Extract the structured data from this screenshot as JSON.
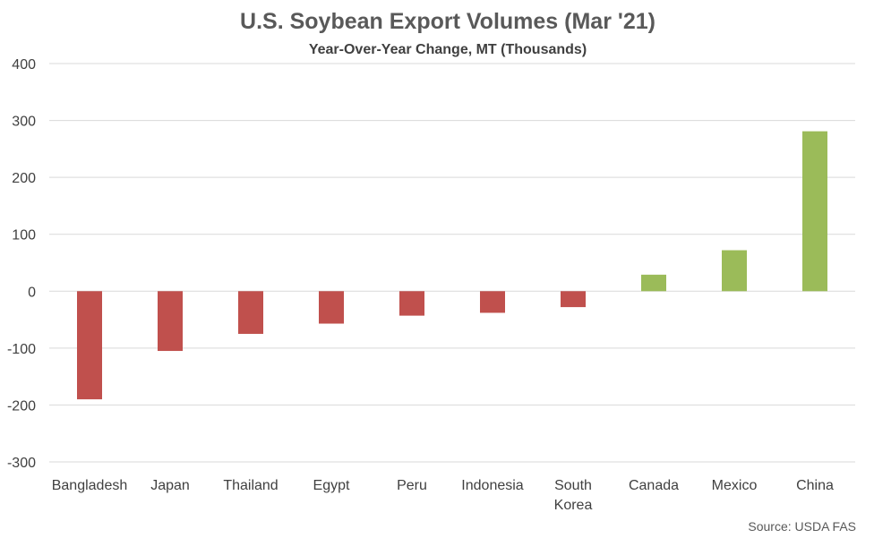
{
  "chart_data": {
    "type": "bar",
    "title": "U.S. Soybean Export Volumes (Mar '21)",
    "subtitle": "Year-Over-Year Change, MT (Thousands)",
    "xlabel": "",
    "ylabel": "",
    "source": "Source: USDA FAS",
    "categories": [
      "Bangladesh",
      "Japan",
      "Thailand",
      "Egypt",
      "Peru",
      "Indonesia",
      "South Korea",
      "Canada",
      "Mexico",
      "China"
    ],
    "category_lines": [
      [
        "Bangladesh"
      ],
      [
        "Japan"
      ],
      [
        "Thailand"
      ],
      [
        "Egypt"
      ],
      [
        "Peru"
      ],
      [
        "Indonesia"
      ],
      [
        "South",
        "Korea"
      ],
      [
        "Canada"
      ],
      [
        "Mexico"
      ],
      [
        "China"
      ]
    ],
    "values": [
      -190,
      -105,
      -75,
      -57,
      -43,
      -38,
      -28,
      29,
      72,
      281
    ],
    "ylim": [
      -300,
      400
    ],
    "yticks": [
      400,
      300,
      200,
      100,
      0,
      -100,
      -200,
      -300
    ],
    "ytick_labels": [
      "400",
      "300",
      "200",
      "100",
      "0",
      "-100",
      "-200",
      "-300"
    ],
    "grid": true,
    "colors": {
      "negative": "#c0504d",
      "positive": "#9bbb59"
    }
  }
}
